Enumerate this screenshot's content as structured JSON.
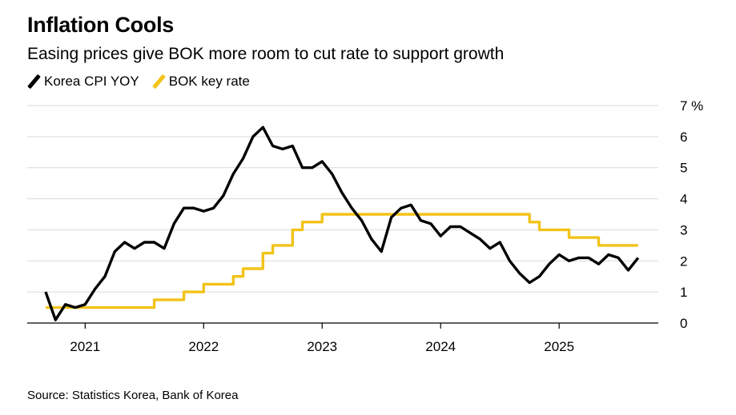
{
  "header": {
    "title": "Inflation Cools",
    "subtitle": "Easing prices give BOK more room to cut rate to support growth"
  },
  "legend": [
    {
      "label": "Korea CPI YOY",
      "color": "#000000"
    },
    {
      "label": "BOK key rate",
      "color": "#f2c318"
    }
  ],
  "source": "Source: Statistics Korea, Bank of Korea",
  "chart_data": {
    "type": "line",
    "title": "Inflation Cools",
    "subtitle": "Easing prices give BOK more room to cut rate to support growth",
    "xlabel": "",
    "ylabel": "",
    "x_ticks": [
      "2021",
      "2022",
      "2023",
      "2024",
      "2025"
    ],
    "y_ticks": [
      {
        "value": 0,
        "label": "0"
      },
      {
        "value": 1,
        "label": "1"
      },
      {
        "value": 2,
        "label": "2"
      },
      {
        "value": 3,
        "label": "3"
      },
      {
        "value": 4,
        "label": "4"
      },
      {
        "value": 5,
        "label": "5"
      },
      {
        "value": 6,
        "label": "6"
      },
      {
        "value": 7,
        "label": "7 %"
      }
    ],
    "ylim": [
      0,
      7
    ],
    "xlim": [
      "2020-09",
      "2025-10"
    ],
    "grid": true,
    "legend_position": "top-left",
    "x": [
      "2020-09",
      "2020-10",
      "2020-11",
      "2020-12",
      "2021-01",
      "2021-02",
      "2021-03",
      "2021-04",
      "2021-05",
      "2021-06",
      "2021-07",
      "2021-08",
      "2021-09",
      "2021-10",
      "2021-11",
      "2021-12",
      "2022-01",
      "2022-02",
      "2022-03",
      "2022-04",
      "2022-05",
      "2022-06",
      "2022-07",
      "2022-08",
      "2022-09",
      "2022-10",
      "2022-11",
      "2022-12",
      "2023-01",
      "2023-02",
      "2023-03",
      "2023-04",
      "2023-05",
      "2023-06",
      "2023-07",
      "2023-08",
      "2023-09",
      "2023-10",
      "2023-11",
      "2023-12",
      "2024-01",
      "2024-02",
      "2024-03",
      "2024-04",
      "2024-05",
      "2024-06",
      "2024-07",
      "2024-08",
      "2024-09",
      "2024-10",
      "2024-11",
      "2024-12",
      "2025-01",
      "2025-02",
      "2025-03",
      "2025-04",
      "2025-05",
      "2025-06",
      "2025-07",
      "2025-08",
      "2025-09"
    ],
    "series": [
      {
        "name": "Korea CPI YOY",
        "color": "#000000",
        "values": [
          1.0,
          0.1,
          0.6,
          0.5,
          0.6,
          1.1,
          1.5,
          2.3,
          2.6,
          2.4,
          2.6,
          2.6,
          2.4,
          3.2,
          3.7,
          3.7,
          3.6,
          3.7,
          4.1,
          4.8,
          5.3,
          6.0,
          6.3,
          5.7,
          5.6,
          5.7,
          5.0,
          5.0,
          5.2,
          4.8,
          4.2,
          3.7,
          3.3,
          2.7,
          2.3,
          3.4,
          3.7,
          3.8,
          3.3,
          3.2,
          2.8,
          3.1,
          3.1,
          2.9,
          2.7,
          2.4,
          2.6,
          2.0,
          1.6,
          1.3,
          1.5,
          1.9,
          2.2,
          2.0,
          2.1,
          2.1,
          1.9,
          2.2,
          2.1,
          1.7,
          2.1
        ]
      },
      {
        "name": "BOK key rate",
        "color": "#f2c318",
        "values": [
          0.5,
          0.5,
          0.5,
          0.5,
          0.5,
          0.5,
          0.5,
          0.5,
          0.5,
          0.5,
          0.5,
          0.75,
          0.75,
          0.75,
          1.0,
          1.0,
          1.25,
          1.25,
          1.25,
          1.5,
          1.75,
          1.75,
          2.25,
          2.5,
          2.5,
          3.0,
          3.25,
          3.25,
          3.5,
          3.5,
          3.5,
          3.5,
          3.5,
          3.5,
          3.5,
          3.5,
          3.5,
          3.5,
          3.5,
          3.5,
          3.5,
          3.5,
          3.5,
          3.5,
          3.5,
          3.5,
          3.5,
          3.5,
          3.5,
          3.25,
          3.0,
          3.0,
          3.0,
          2.75,
          2.75,
          2.75,
          2.5,
          2.5,
          2.5,
          2.5,
          2.5
        ]
      }
    ]
  }
}
